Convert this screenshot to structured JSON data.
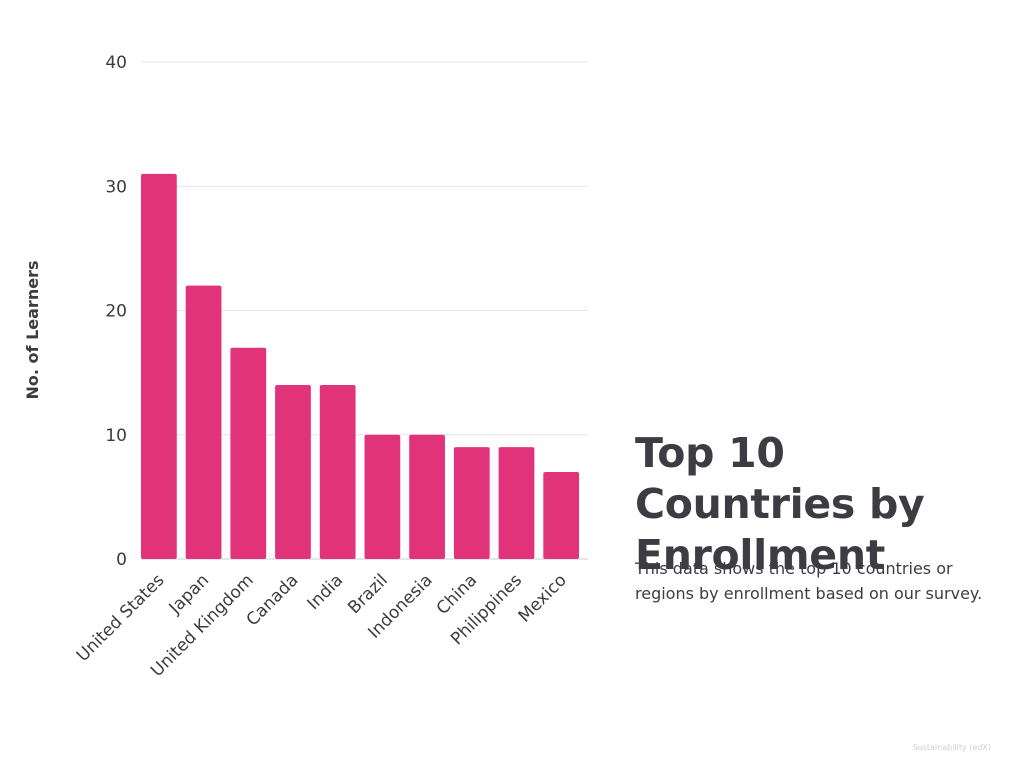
{
  "chart_data": {
    "type": "bar",
    "title": "Top 10 Countries by Enrollment",
    "subtitle": "This data shows the top 10 countries or regions by enrollment based on our survey.",
    "xlabel": "",
    "ylabel": "No. of Learners",
    "categories": [
      "United States",
      "Japan",
      "United Kingdom",
      "Canada",
      "India",
      "Brazil",
      "Indonesia",
      "China",
      "Philippines",
      "Mexico"
    ],
    "values": [
      31,
      22,
      17,
      14,
      14,
      10,
      10,
      9,
      9,
      7
    ],
    "ylim": [
      0,
      40
    ],
    "yticks": [
      0,
      10,
      20,
      30,
      40
    ],
    "grid": true,
    "legend": "none",
    "colors": {
      "bar": "#e0337a",
      "grid": "#e6e6e6",
      "text": "#3d3c42"
    }
  },
  "footer": {
    "note": "Sustainability (edX)"
  }
}
